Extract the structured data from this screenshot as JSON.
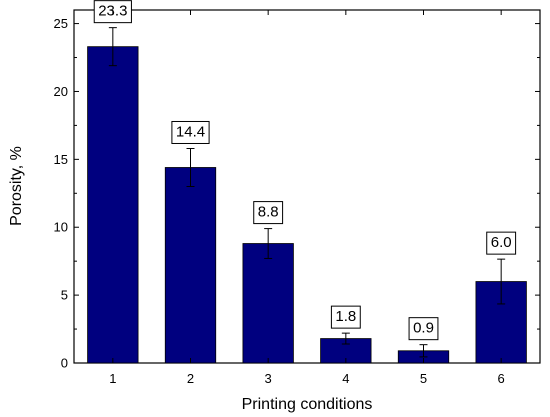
{
  "chart_data": {
    "type": "bar",
    "categories": [
      "1",
      "2",
      "3",
      "4",
      "5",
      "6"
    ],
    "values": [
      23.3,
      14.4,
      8.8,
      1.8,
      0.9,
      6.0
    ],
    "errors": [
      1.4,
      1.4,
      1.1,
      0.4,
      0.45,
      1.65
    ],
    "data_labels": [
      "23.3",
      "14.4",
      "8.8",
      "1.8",
      "0.9",
      "6.0"
    ],
    "xlabel": "Printing conditions",
    "ylabel": "Porosity, %",
    "ylim": [
      0,
      26
    ],
    "yticks": [
      0,
      5,
      10,
      15,
      20,
      25
    ],
    "bar_color": "#00007F",
    "grid": false
  }
}
